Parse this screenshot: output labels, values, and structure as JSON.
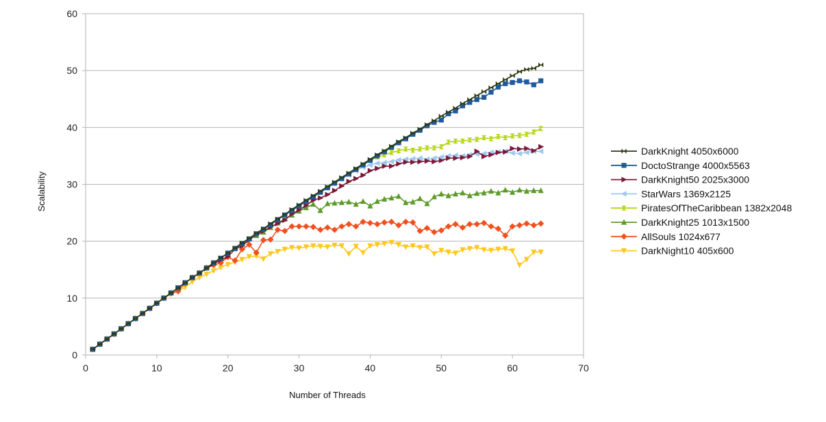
{
  "chart_data": {
    "type": "line",
    "title": "",
    "xlabel": "Number of Threads",
    "ylabel": "Scalability",
    "xlim": [
      0,
      70
    ],
    "ylim": [
      0,
      60
    ],
    "xticks": [
      0,
      10,
      20,
      30,
      40,
      50,
      60,
      70
    ],
    "yticks": [
      0,
      10,
      20,
      30,
      40,
      50,
      60
    ],
    "grid": "horizontal",
    "legend_position": "right",
    "series": [
      {
        "name": "DarkKnight 4050x6000",
        "color": "#2b3a12",
        "marker": "bowtie",
        "values": [
          1,
          1.9,
          2.8,
          3.7,
          4.6,
          5.5,
          6.4,
          7.3,
          8.2,
          9.1,
          10.0,
          10.9,
          11.8,
          12.7,
          13.6,
          14.4,
          15.3,
          16.2,
          17.1,
          17.9,
          18.8,
          19.7,
          20.5,
          21.4,
          22.2,
          23.1,
          23.9,
          24.7,
          25.6,
          26.4,
          27.2,
          28.0,
          28.8,
          29.6,
          30.4,
          31.2,
          32.0,
          32.8,
          33.6,
          34.4,
          35.2,
          35.9,
          36.7,
          37.5,
          38.2,
          39.0,
          39.7,
          40.5,
          41.2,
          42.0,
          42.7,
          43.4,
          44.2,
          44.9,
          45.6,
          46.3,
          47.0,
          47.7,
          48.4,
          49.1,
          49.8,
          50.2,
          50.4,
          51.0
        ]
      },
      {
        "name": "DoctoStrange 4000x5563",
        "color": "#1f5a9e",
        "marker": "square",
        "values": [
          1,
          1.9,
          2.8,
          3.7,
          4.6,
          5.5,
          6.4,
          7.3,
          8.2,
          9.1,
          10.0,
          10.9,
          11.8,
          12.7,
          13.6,
          14.4,
          15.3,
          16.2,
          17.0,
          17.9,
          18.7,
          19.6,
          20.4,
          21.3,
          22.1,
          22.9,
          23.8,
          24.6,
          25.4,
          26.2,
          27.0,
          27.8,
          28.6,
          29.4,
          30.2,
          31.0,
          31.8,
          32.6,
          33.4,
          34.2,
          35.0,
          35.7,
          36.5,
          37.3,
          38.0,
          38.8,
          39.5,
          40.3,
          40.9,
          41.3,
          42.4,
          42.9,
          43.8,
          44.4,
          44.9,
          45.3,
          46.2,
          47.1,
          47.7,
          47.9,
          48.2,
          48.0,
          47.5,
          48.2
        ]
      },
      {
        "name": "DarkKnight50 2025x3000",
        "color": "#7a1a3a",
        "marker": "triangle-right",
        "values": [
          1,
          1.9,
          2.8,
          3.7,
          4.6,
          5.5,
          6.4,
          7.3,
          8.2,
          9.1,
          10.0,
          10.9,
          11.8,
          12.7,
          13.6,
          14.4,
          15.2,
          16.0,
          16.7,
          17.3,
          18.6,
          19.2,
          20.2,
          21.2,
          21.8,
          22.5,
          23.1,
          23.7,
          24.8,
          25.5,
          26.3,
          27.2,
          27.6,
          28.2,
          28.9,
          29.7,
          30.5,
          31.0,
          31.6,
          32.4,
          32.8,
          33.2,
          33.2,
          33.6,
          33.9,
          33.9,
          34.0,
          34.1,
          34.0,
          34.2,
          34.6,
          34.6,
          34.7,
          34.9,
          35.8,
          34.9,
          35.2,
          35.6,
          35.7,
          36.3,
          36.2,
          36.3,
          35.9,
          36.6
        ]
      },
      {
        "name": "StarWars 1369x2125",
        "color": "#9ec9ef",
        "marker": "triangle-left",
        "values": [
          1,
          1.9,
          2.8,
          3.7,
          4.6,
          5.5,
          6.4,
          7.3,
          8.2,
          9.1,
          10.0,
          10.9,
          11.8,
          12.7,
          13.6,
          14.4,
          15.3,
          16.2,
          17.0,
          17.9,
          18.7,
          19.6,
          20.4,
          21.3,
          22.1,
          22.9,
          23.8,
          24.6,
          25.4,
          26.2,
          27.0,
          27.8,
          28.6,
          29.4,
          30.2,
          31.0,
          31.7,
          32.4,
          33.0,
          33.4,
          33.7,
          33.8,
          34.0,
          34.3,
          34.4,
          34.5,
          34.6,
          34.4,
          34.6,
          34.8,
          35.0,
          35.1,
          35.0,
          35.2,
          35.3,
          35.4,
          35.6,
          35.7,
          35.8,
          35.5,
          35.4,
          35.6,
          35.8,
          35.8
        ]
      },
      {
        "name": "PiratesOfTheCaribbean 1382x2048",
        "color": "#b5d40e",
        "marker": "hourglass",
        "values": [
          1,
          1.9,
          2.8,
          3.7,
          4.6,
          5.5,
          6.4,
          7.3,
          8.2,
          9.1,
          10.0,
          10.9,
          11.8,
          12.7,
          13.6,
          14.4,
          15.3,
          16.2,
          17.0,
          17.9,
          18.8,
          19.6,
          20.4,
          21.3,
          22.1,
          22.9,
          23.8,
          24.6,
          25.4,
          26.2,
          27.0,
          27.8,
          28.6,
          29.4,
          30.2,
          31.0,
          31.8,
          32.6,
          33.4,
          34.2,
          34.8,
          35.2,
          35.6,
          35.9,
          36.2,
          36.0,
          36.2,
          36.4,
          36.4,
          36.6,
          37.4,
          37.6,
          37.6,
          37.8,
          37.9,
          38.2,
          38.0,
          38.4,
          38.2,
          38.5,
          38.6,
          38.8,
          39.2,
          39.8
        ]
      },
      {
        "name": "DarkKnight25 1013x1500",
        "color": "#5e9a2a",
        "marker": "triangle-up",
        "values": [
          1,
          1.9,
          2.8,
          3.7,
          4.6,
          5.5,
          6.4,
          7.3,
          8.2,
          9.1,
          10.0,
          10.9,
          11.8,
          12.7,
          13.6,
          14.4,
          15.3,
          16.2,
          17.0,
          17.9,
          18.7,
          19.5,
          20.4,
          21.0,
          21.6,
          22.4,
          23.2,
          23.9,
          24.6,
          25.3,
          25.9,
          26.5,
          25.4,
          26.6,
          26.7,
          26.8,
          26.9,
          26.5,
          27.0,
          26.2,
          27.0,
          27.4,
          27.6,
          27.9,
          26.8,
          26.9,
          27.5,
          26.6,
          27.8,
          28.3,
          28.0,
          28.3,
          28.5,
          28.0,
          28.4,
          28.5,
          28.8,
          28.5,
          29.0,
          28.6,
          29.0,
          28.8,
          28.9,
          28.9
        ]
      },
      {
        "name": "AllSouls 1024x677",
        "color": "#f0501e",
        "marker": "diamond",
        "values": [
          1,
          1.9,
          2.8,
          3.7,
          4.6,
          5.5,
          6.4,
          7.3,
          8.2,
          9.1,
          10.0,
          10.9,
          11.2,
          12.6,
          13.6,
          14.4,
          15.3,
          15.8,
          16.2,
          17.2,
          16.6,
          18.6,
          19.4,
          18.0,
          20.2,
          20.3,
          22.0,
          21.8,
          22.6,
          22.6,
          22.6,
          22.5,
          22.0,
          22.4,
          22.0,
          22.6,
          23.0,
          22.6,
          23.4,
          23.2,
          23.0,
          23.3,
          23.4,
          22.8,
          23.4,
          23.3,
          21.8,
          22.3,
          21.6,
          21.9,
          22.6,
          23.0,
          22.4,
          23.0,
          23.0,
          23.2,
          22.6,
          22.2,
          21.0,
          22.6,
          22.8,
          23.1,
          22.8,
          23.1
        ]
      },
      {
        "name": "DarkNight10 405x600",
        "color": "#ffc81e",
        "marker": "triangle-down",
        "values": [
          1,
          1.9,
          2.8,
          3.7,
          4.6,
          5.5,
          6.4,
          7.3,
          8.2,
          9.1,
          10.0,
          10.7,
          11.2,
          11.9,
          12.9,
          13.6,
          14.2,
          14.8,
          15.4,
          15.9,
          16.3,
          16.8,
          17.3,
          17.4,
          16.9,
          17.8,
          18.2,
          18.6,
          18.9,
          18.8,
          19.0,
          19.2,
          19.1,
          19.0,
          19.3,
          19.2,
          17.8,
          19.1,
          18.0,
          19.2,
          19.4,
          19.6,
          19.8,
          19.4,
          19.0,
          19.2,
          18.9,
          19.0,
          17.8,
          18.4,
          18.1,
          17.9,
          18.5,
          18.7,
          18.9,
          18.5,
          18.4,
          18.6,
          18.7,
          18.3,
          15.8,
          16.8,
          18.1,
          18.1
        ]
      }
    ]
  }
}
